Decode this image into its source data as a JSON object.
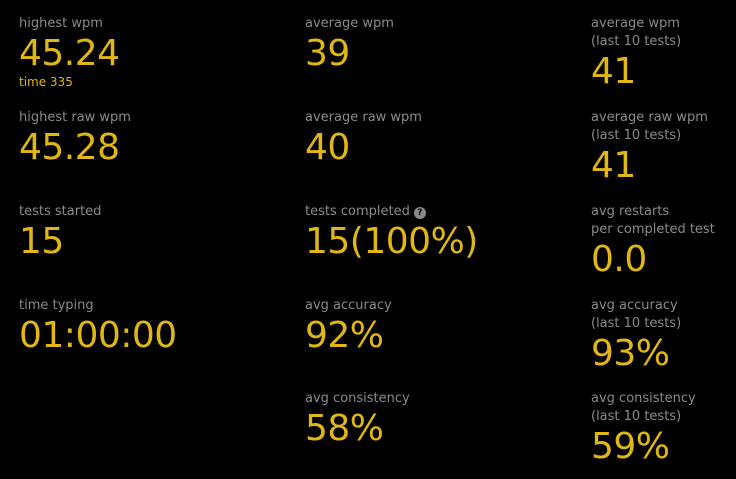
{
  "stats": {
    "col1": [
      {
        "label": "highest wpm",
        "value": "45.24",
        "sub": "time 335"
      },
      {
        "label": "highest raw wpm",
        "value": "45.28"
      },
      {
        "label": "tests started",
        "value": "15"
      },
      {
        "label": "time typing",
        "value": "01:00:00"
      }
    ],
    "col2": [
      {
        "label": "average wpm",
        "value": "39"
      },
      {
        "label": "average raw wpm",
        "value": "40"
      },
      {
        "label": "tests completed",
        "value": "15(100%)",
        "icon": "question-circle-icon"
      },
      {
        "label": "avg accuracy",
        "value": "92%"
      },
      {
        "label": "avg consistency",
        "value": "58%"
      }
    ],
    "col3": [
      {
        "label": "average wpm",
        "label2": "(last 10 tests)",
        "value": "41"
      },
      {
        "label": "average raw wpm",
        "label2": "(last 10 tests)",
        "value": "41"
      },
      {
        "label": "avg restarts",
        "label2": "per completed test",
        "value": "0.0"
      },
      {
        "label": "avg accuracy",
        "label2": "(last 10 tests)",
        "value": "93%"
      },
      {
        "label": "avg consistency",
        "label2": "(last 10 tests)",
        "value": "59%"
      }
    ]
  },
  "colors": {
    "background": "#000000",
    "label": "#8a8a8a",
    "accent": "#e2b714"
  }
}
